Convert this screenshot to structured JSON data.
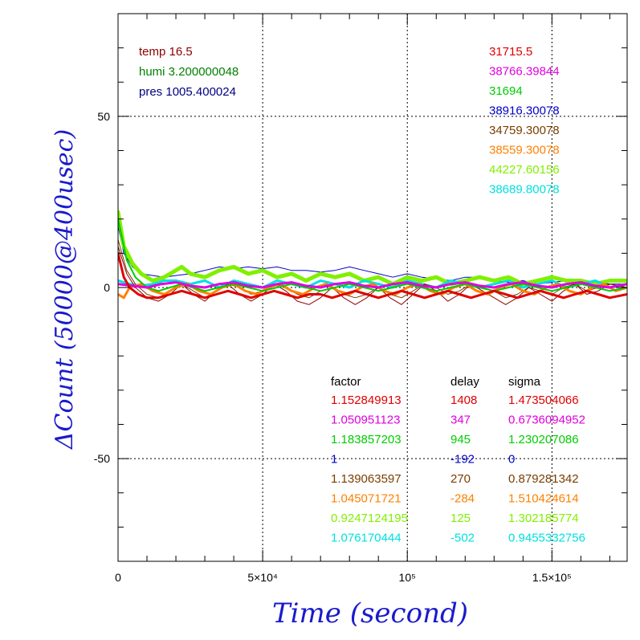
{
  "chart_data": {
    "type": "line",
    "xlabel": "Time (second)",
    "ylabel": "ΔCount (50000@400usec)",
    "xlim": [
      0,
      176000
    ],
    "ylim": [
      -80,
      80
    ],
    "grid": true,
    "x_ticks": [
      {
        "value": 0,
        "label": "0"
      },
      {
        "value": 50000,
        "label": "5×10⁴"
      },
      {
        "value": 100000,
        "label": "10⁵"
      },
      {
        "value": 150000,
        "label": "1.5×10⁵"
      }
    ],
    "y_ticks": [
      {
        "value": 50,
        "label": "50"
      },
      {
        "value": 0,
        "label": "0"
      },
      {
        "value": -50,
        "label": "-50"
      }
    ],
    "env_labels": [
      {
        "text": "temp 16.5",
        "color": "#8b0000"
      },
      {
        "text": "humi 3.200000048",
        "color": "#008000"
      },
      {
        "text": "pres 1005.400024",
        "color": "#000080"
      }
    ],
    "mean_counts": [
      {
        "text": "31715.5",
        "color": "#e00000"
      },
      {
        "text": "38766.39844",
        "color": "#e000e0"
      },
      {
        "text": "31694",
        "color": "#00cc00"
      },
      {
        "text": "38916.30078",
        "color": "#0000cc"
      },
      {
        "text": "34759.30078",
        "color": "#7a3d00"
      },
      {
        "text": "38559.30078",
        "color": "#ff8000"
      },
      {
        "text": "44227.60156",
        "color": "#80f000"
      },
      {
        "text": "38689.80078",
        "color": "#00e0e0"
      }
    ],
    "table": {
      "headers": [
        "factor",
        "delay",
        "sigma"
      ],
      "rows": [
        {
          "factor": "1.152849913",
          "delay": "1408",
          "sigma": "1.473504066",
          "color": "#e00000"
        },
        {
          "factor": "1.050951123",
          "delay": "347",
          "sigma": "0.6736094952",
          "color": "#e000e0"
        },
        {
          "factor": "1.183857203",
          "delay": "945",
          "sigma": "1.230207086",
          "color": "#00cc00"
        },
        {
          "factor": "1",
          "delay": "-192",
          "sigma": "0",
          "color": "#0000cc"
        },
        {
          "factor": "1.139063597",
          "delay": "270",
          "sigma": "0.879281342",
          "color": "#7a3d00"
        },
        {
          "factor": "1.045071721",
          "delay": "-284",
          "sigma": "1.510424614",
          "color": "#ff8000"
        },
        {
          "factor": "0.9247124195",
          "delay": "125",
          "sigma": "1.302185774",
          "color": "#80f000"
        },
        {
          "factor": "1.076170444",
          "delay": "-502",
          "sigma": "0.9455332756",
          "color": "#00e0e0"
        }
      ]
    },
    "series": [
      {
        "color": "#0000cc",
        "width": 1,
        "x": [
          0,
          2000,
          5000,
          8000,
          12000,
          16000,
          20000,
          25000,
          30000,
          35000,
          40000,
          45000,
          50000,
          55000,
          60000,
          65000,
          70000,
          75000,
          80000,
          85000,
          90000,
          95000,
          100000,
          105000,
          110000,
          115000,
          120000,
          125000,
          130000,
          135000,
          140000,
          145000,
          150000,
          155000,
          160000,
          165000,
          170000,
          176000
        ],
        "y": [
          18,
          10,
          6,
          4,
          3.5,
          3,
          3.5,
          4,
          5,
          6,
          5.5,
          6,
          5.5,
          6,
          5,
          5,
          4.5,
          5,
          6,
          5,
          4,
          3,
          4,
          3,
          2.5,
          2,
          3,
          3,
          2,
          1.5,
          2,
          1,
          1.5,
          2,
          1,
          1.5,
          1,
          1
        ]
      },
      {
        "color": "#80f000",
        "width": 5,
        "x": [
          0,
          2000,
          5000,
          8000,
          12000,
          16000,
          20000,
          22000,
          25000,
          30000,
          35000,
          40000,
          45000,
          50000,
          55000,
          60000,
          65000,
          70000,
          75000,
          80000,
          85000,
          90000,
          95000,
          100000,
          105000,
          110000,
          115000,
          120000,
          125000,
          130000,
          135000,
          140000,
          145000,
          150000,
          155000,
          160000,
          165000,
          170000,
          176000
        ],
        "y": [
          22,
          12,
          7,
          4,
          2,
          3,
          5,
          6,
          4,
          3,
          5,
          6,
          4,
          5,
          3,
          4,
          2,
          4,
          3,
          4,
          2,
          3,
          1,
          3,
          2,
          3,
          1,
          2,
          3,
          2,
          3,
          1,
          2,
          3,
          2,
          2,
          1,
          2,
          2
        ]
      },
      {
        "color": "#00e0e0",
        "width": 3,
        "x": [
          0,
          4000,
          8000,
          12000,
          16000,
          20000,
          25000,
          30000,
          35000,
          40000,
          45000,
          50000,
          55000,
          60000,
          65000,
          70000,
          75000,
          80000,
          85000,
          90000,
          95000,
          100000,
          105000,
          110000,
          115000,
          120000,
          125000,
          130000,
          135000,
          140000,
          145000,
          150000,
          155000,
          160000,
          165000,
          170000,
          176000
        ],
        "y": [
          2,
          1,
          0.5,
          1,
          2,
          2,
          1,
          2,
          0,
          2,
          1,
          0,
          2,
          1,
          0,
          2,
          1,
          0,
          2,
          1,
          0,
          2,
          1,
          0,
          2,
          1,
          0,
          1,
          2,
          0,
          1,
          2,
          0,
          1,
          2,
          0,
          1
        ]
      },
      {
        "color": "#7a3d00",
        "width": 1,
        "x": [
          0,
          3000,
          6000,
          10000,
          14000,
          18000,
          22000,
          26000,
          30000,
          34000,
          38000,
          42000,
          46000,
          50000,
          54000,
          58000,
          62000,
          66000,
          70000,
          74000,
          78000,
          82000,
          86000,
          90000,
          94000,
          98000,
          102000,
          106000,
          110000,
          114000,
          118000,
          122000,
          126000,
          130000,
          134000,
          138000,
          142000,
          146000,
          150000,
          154000,
          158000,
          162000,
          166000,
          170000,
          176000
        ],
        "y": [
          14,
          5,
          1,
          -2,
          -3,
          -1,
          1,
          -1,
          -3,
          -1,
          1,
          0,
          -2,
          -1,
          1,
          0,
          -2,
          -3,
          -1,
          0,
          -2,
          -3,
          -2,
          0,
          -2,
          -3,
          -1,
          1,
          0,
          -2,
          -1,
          1,
          0,
          -1,
          -3,
          -2,
          0,
          -1,
          -2,
          0,
          1,
          -1,
          0,
          1,
          0
        ]
      },
      {
        "color": "#8b0000",
        "width": 1,
        "x": [
          0,
          3000,
          6000,
          10000,
          14000,
          18000,
          22000,
          26000,
          30000,
          34000,
          38000,
          42000,
          46000,
          50000,
          54000,
          58000,
          62000,
          66000,
          70000,
          74000,
          78000,
          82000,
          86000,
          90000,
          94000,
          98000,
          102000,
          106000,
          110000,
          114000,
          118000,
          122000,
          126000,
          130000,
          134000,
          138000,
          142000,
          146000,
          150000,
          154000,
          158000,
          162000,
          166000,
          170000,
          176000
        ],
        "y": [
          12,
          4,
          0,
          -3,
          -4,
          -2,
          1,
          -2,
          -4,
          -1,
          1,
          -2,
          -4,
          -2,
          1,
          -1,
          -4,
          -5,
          -3,
          0,
          -3,
          -5,
          -3,
          0,
          -3,
          -5,
          -2,
          1,
          -1,
          -4,
          -2,
          1,
          -1,
          -3,
          -5,
          -3,
          0,
          -2,
          -4,
          -1,
          1,
          -2,
          -1,
          1,
          0
        ]
      },
      {
        "color": "#ff8000",
        "width": 3,
        "x": [
          0,
          2000,
          4000,
          8000,
          12000,
          16000,
          20000,
          24000,
          28000,
          32000,
          36000,
          40000,
          44000,
          48000,
          52000,
          56000,
          60000,
          64000,
          68000,
          72000,
          76000,
          80000,
          84000,
          88000,
          92000,
          96000,
          100000,
          104000,
          108000,
          112000,
          116000,
          120000,
          124000,
          128000,
          132000,
          136000,
          140000,
          144000,
          148000,
          152000,
          156000,
          160000,
          164000,
          168000,
          172000,
          176000
        ],
        "y": [
          -2,
          -3,
          0,
          1,
          -1,
          -2,
          0,
          1,
          -1,
          -2,
          0,
          1,
          -1,
          -2,
          0,
          1,
          -1,
          -2,
          0,
          1,
          -1,
          -2,
          0,
          1,
          -1,
          -2,
          0,
          1,
          -1,
          -2,
          0,
          1,
          -1,
          -2,
          0,
          1,
          -1,
          -2,
          0,
          1,
          -1,
          -2,
          0,
          1,
          -1,
          0
        ]
      },
      {
        "color": "#00cc00",
        "width": 2,
        "x": [
          0,
          3000,
          6000,
          10000,
          14000,
          18000,
          22000,
          26000,
          30000,
          35000,
          40000,
          45000,
          50000,
          55000,
          60000,
          65000,
          70000,
          75000,
          80000,
          85000,
          90000,
          95000,
          100000,
          105000,
          110000,
          115000,
          120000,
          125000,
          130000,
          135000,
          140000,
          145000,
          150000,
          155000,
          160000,
          165000,
          170000,
          176000
        ],
        "y": [
          20,
          8,
          3,
          0,
          -1,
          0,
          1,
          0,
          -1,
          0,
          1,
          0,
          -1,
          0,
          1,
          0,
          -1,
          0,
          1,
          0,
          -1,
          0,
          1,
          0,
          -1,
          0,
          1,
          0,
          -1,
          0,
          1,
          0,
          -1,
          0,
          1,
          0,
          -1,
          0
        ]
      },
      {
        "color": "#e000e0",
        "width": 3,
        "x": [
          0,
          5000,
          10000,
          15000,
          20000,
          25000,
          30000,
          35000,
          40000,
          45000,
          50000,
          55000,
          60000,
          65000,
          70000,
          75000,
          80000,
          85000,
          90000,
          95000,
          100000,
          105000,
          110000,
          115000,
          120000,
          125000,
          130000,
          135000,
          140000,
          145000,
          150000,
          155000,
          160000,
          165000,
          170000,
          176000
        ],
        "y": [
          1,
          0.5,
          0,
          1,
          1.5,
          0.5,
          0,
          1,
          1.5,
          0.5,
          0,
          1,
          1.5,
          0.5,
          0,
          1,
          1.5,
          0.5,
          0,
          1,
          1.5,
          0.5,
          0,
          1,
          1.5,
          0.5,
          0,
          1,
          1.5,
          0.5,
          0,
          1,
          1.5,
          0.5,
          0,
          1
        ]
      },
      {
        "color": "#e00000",
        "width": 3,
        "x": [
          0,
          2000,
          4000,
          7000,
          10000,
          14000,
          18000,
          22000,
          26000,
          30000,
          34000,
          38000,
          42000,
          46000,
          50000,
          54000,
          58000,
          62000,
          66000,
          70000,
          74000,
          78000,
          82000,
          86000,
          90000,
          94000,
          98000,
          102000,
          106000,
          110000,
          114000,
          118000,
          122000,
          126000,
          130000,
          134000,
          138000,
          142000,
          146000,
          150000,
          154000,
          158000,
          162000,
          166000,
          170000,
          176000
        ],
        "y": [
          10,
          3,
          0,
          -2,
          -3,
          -3,
          -2,
          -1,
          -2,
          -3,
          -2,
          -1,
          -2,
          -3,
          -2,
          -1,
          -2,
          -3,
          -2,
          -2,
          -3,
          -2,
          -1,
          -2,
          -3,
          -2,
          -1,
          -2,
          -3,
          -2,
          -1,
          -2,
          -3,
          -2,
          -1,
          -2,
          -3,
          -2,
          -1,
          -2,
          -3,
          -2,
          -1,
          -2,
          -3,
          -2
        ]
      }
    ]
  }
}
